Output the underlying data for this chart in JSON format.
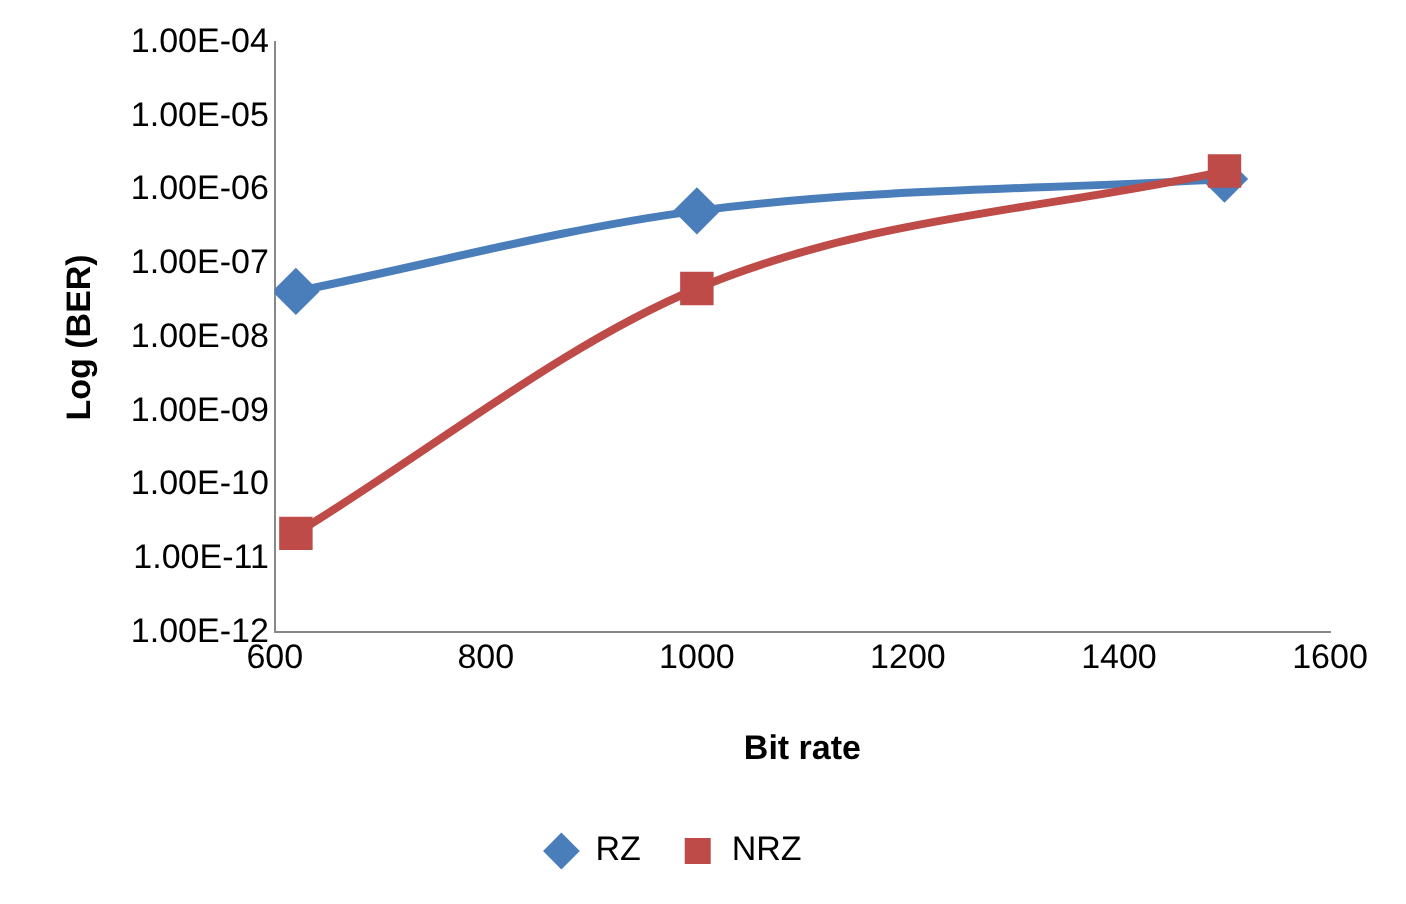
{
  "chart_data": {
    "type": "line",
    "xlabel": "Bit rate",
    "ylabel": "Log (BER)",
    "log": "y",
    "grid": false,
    "legend": "bottom",
    "xlim": [
      600,
      1600
    ],
    "xticks": [
      600,
      800,
      1000,
      1200,
      1400,
      1600
    ],
    "ylim": [
      1e-12,
      0.0001
    ],
    "yticks": [
      {
        "value": 1e-12,
        "label": "1.00E-12"
      },
      {
        "value": 1e-11,
        "label": "1.00E-11"
      },
      {
        "value": 1e-10,
        "label": "1.00E-10"
      },
      {
        "value": 1e-09,
        "label": "1.00E-09"
      },
      {
        "value": 1e-08,
        "label": "1.00E-08"
      },
      {
        "value": 1e-07,
        "label": "1.00E-07"
      },
      {
        "value": 1e-06,
        "label": "1.00E-06"
      },
      {
        "value": 1e-05,
        "label": "1.00E-05"
      },
      {
        "value": 0.0001,
        "label": "1.00E-04"
      }
    ],
    "x": [
      620,
      1000,
      1500
    ],
    "series": [
      {
        "name": "RZ",
        "color": "#4a7ebb",
        "marker": "diamond",
        "values": [
          4.2e-08,
          5.2e-07,
          1.4e-06
        ]
      },
      {
        "name": "NRZ",
        "color": "#be4b48",
        "marker": "square",
        "values": [
          2.2e-11,
          4.6e-08,
          1.8e-06
        ]
      }
    ]
  }
}
